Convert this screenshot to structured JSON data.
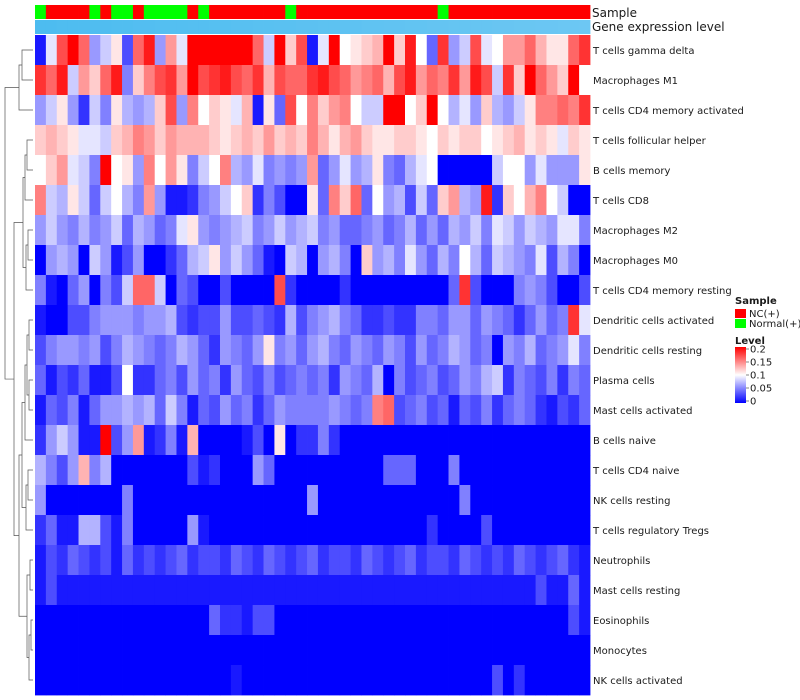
{
  "chart_data": {
    "type": "heatmap",
    "title": "",
    "annotation_labels": [
      "Sample",
      "Gene expression level"
    ],
    "rows": [
      "T cells gamma delta",
      "Macrophages M1",
      "T cells CD4 memory activated",
      "T cells follicular helper",
      "B cells memory",
      "T cells CD8",
      "Macrophages M2",
      "Macrophages M0",
      "T cells CD4 memory resting",
      "Dendritic cells activated",
      "Dendritic cells resting",
      "Plasma cells",
      "Mast cells activated",
      "B cells naive",
      "T cells CD4 naive",
      "NK cells resting",
      "T cells regulatory  Tregs",
      "Neutrophils",
      "Mast cells resting",
      "Eosinophils",
      "Monocytes",
      "NK cells activated"
    ],
    "sample_groups": [
      "Normal(+)",
      "NC(+)",
      "NC(+)",
      "NC(+)",
      "NC(+)",
      "Normal(+)",
      "NC(+)",
      "Normal(+)",
      "Normal(+)",
      "NC(+)",
      "Normal(+)",
      "Normal(+)",
      "Normal(+)",
      "Normal(+)",
      "NC(+)",
      "Normal(+)",
      "NC(+)",
      "NC(+)",
      "NC(+)",
      "NC(+)",
      "NC(+)",
      "NC(+)",
      "NC(+)",
      "Normal(+)",
      "NC(+)",
      "NC(+)",
      "NC(+)",
      "NC(+)",
      "NC(+)",
      "NC(+)",
      "NC(+)",
      "NC(+)",
      "NC(+)",
      "NC(+)",
      "NC(+)",
      "NC(+)",
      "NC(+)",
      "Normal(+)",
      "NC(+)",
      "NC(+)",
      "NC(+)",
      "NC(+)",
      "NC(+)",
      "NC(+)",
      "NC(+)",
      "NC(+)",
      "NC(+)",
      "NC(+)",
      "NC(+)",
      "NC(+)",
      "NC(+)"
    ],
    "gene_expression_level": [
      0.99,
      0.99,
      0.98,
      0.98,
      0.98,
      0.97,
      0.97,
      0.96,
      0.96,
      0.95,
      0.95,
      0.94,
      0.94,
      0.94,
      0.93,
      0.93,
      0.92,
      0.92,
      0.91,
      0.91,
      0.9,
      0.9,
      0.89,
      0.89,
      0.88,
      0.88,
      0.87,
      0.87,
      0.86,
      0.86,
      0.85,
      0.85,
      0.84,
      0.84,
      0.83,
      0.83,
      0.82,
      0.82,
      0.81,
      0.81,
      0.8,
      0.8,
      0.79,
      0.79,
      0.78,
      0.78,
      0.77,
      0.77,
      0.76,
      0.76,
      0.75
    ],
    "values": [
      [
        0.01,
        0.09,
        0.17,
        0.2,
        0.16,
        0.06,
        0.08,
        0.11,
        0.03,
        0.16,
        0.19,
        0.06,
        0.14,
        0.09,
        0.2,
        0.2,
        0.2,
        0.2,
        0.2,
        0.2,
        0.16,
        0.08,
        0.2,
        0.12,
        0.17,
        0.01,
        0.09,
        0.2,
        0.1,
        0.11,
        0.12,
        0.13,
        0.2,
        0.12,
        0.19,
        0.1,
        0.04,
        0.18,
        0.06,
        0.08,
        0.17,
        0.09,
        0.1,
        0.14,
        0.14,
        0.16,
        0.13,
        0.11,
        0.11,
        0.16,
        0.18
      ],
      [
        0.18,
        0.16,
        0.19,
        0.08,
        0.14,
        0.12,
        0.16,
        0.19,
        0.05,
        0.12,
        0.15,
        0.17,
        0.18,
        0.14,
        0.2,
        0.17,
        0.18,
        0.19,
        0.17,
        0.16,
        0.18,
        0.13,
        0.17,
        0.16,
        0.16,
        0.18,
        0.19,
        0.17,
        0.16,
        0.14,
        0.15,
        0.16,
        0.13,
        0.17,
        0.19,
        0.14,
        0.16,
        0.15,
        0.18,
        0.14,
        0.19,
        0.17,
        0.08,
        0.18,
        0.12,
        0.2,
        0.16,
        0.14,
        0.12,
        0.2,
        0.1
      ],
      [
        0.06,
        0.08,
        0.11,
        0.06,
        0.02,
        0.08,
        0.05,
        0.11,
        0.07,
        0.06,
        0.07,
        0.12,
        0.17,
        0.06,
        0.15,
        0.1,
        0.12,
        0.11,
        0.09,
        0.13,
        0.01,
        0.11,
        0.04,
        0.17,
        0.1,
        0.15,
        0.12,
        0.14,
        0.15,
        0.1,
        0.08,
        0.08,
        0.2,
        0.2,
        0.1,
        0.12,
        0.2,
        0.1,
        0.07,
        0.09,
        0.06,
        0.12,
        0.07,
        0.06,
        0.08,
        0.11,
        0.15,
        0.15,
        0.16,
        0.15,
        0.18
      ],
      [
        0.12,
        0.13,
        0.12,
        0.11,
        0.09,
        0.09,
        0.08,
        0.12,
        0.13,
        0.15,
        0.14,
        0.12,
        0.14,
        0.13,
        0.13,
        0.13,
        0.12,
        0.11,
        0.12,
        0.13,
        0.12,
        0.14,
        0.12,
        0.13,
        0.12,
        0.15,
        0.13,
        0.11,
        0.13,
        0.14,
        0.12,
        0.11,
        0.11,
        0.12,
        0.12,
        0.11,
        0.1,
        0.12,
        0.11,
        0.12,
        0.12,
        0.1,
        0.11,
        0.12,
        0.13,
        0.11,
        0.12,
        0.11,
        0.09,
        0.12,
        0.11
      ],
      [
        0.1,
        0.12,
        0.14,
        0.09,
        0.08,
        0.05,
        0.2,
        0.1,
        0.11,
        0.06,
        0.15,
        0.1,
        0.14,
        0.11,
        0.05,
        0.08,
        0.1,
        0.15,
        0.07,
        0.06,
        0.09,
        0.05,
        0.06,
        0.05,
        0.06,
        0.14,
        0.04,
        0.06,
        0.09,
        0.06,
        0.07,
        0.11,
        0.05,
        0.04,
        0.07,
        0.09,
        0.1,
        0.0,
        0.0,
        0.0,
        0.0,
        0.0,
        0.08,
        0.1,
        0.1,
        0.06,
        0.09,
        0.06,
        0.06,
        0.06,
        0.11
      ],
      [
        0.15,
        0.08,
        0.07,
        0.11,
        0.08,
        0.04,
        0.08,
        0.1,
        0.07,
        0.05,
        0.14,
        0.06,
        0.01,
        0.01,
        0.02,
        0.05,
        0.06,
        0.08,
        0.1,
        0.12,
        0.02,
        0.05,
        0.03,
        0.0,
        0.0,
        0.11,
        0.04,
        0.15,
        0.12,
        0.16,
        0.04,
        0.1,
        0.06,
        0.07,
        0.03,
        0.08,
        0.04,
        0.12,
        0.14,
        0.07,
        0.06,
        0.19,
        0.02,
        0.12,
        0.1,
        0.13,
        0.15,
        0.1,
        0.08,
        0.0,
        0.0
      ],
      [
        0.06,
        0.08,
        0.06,
        0.05,
        0.07,
        0.05,
        0.06,
        0.08,
        0.04,
        0.07,
        0.06,
        0.04,
        0.05,
        0.09,
        0.11,
        0.06,
        0.05,
        0.06,
        0.07,
        0.08,
        0.05,
        0.06,
        0.08,
        0.06,
        0.07,
        0.08,
        0.05,
        0.06,
        0.04,
        0.04,
        0.05,
        0.06,
        0.04,
        0.05,
        0.07,
        0.04,
        0.06,
        0.04,
        0.07,
        0.06,
        0.08,
        0.05,
        0.09,
        0.08,
        0.06,
        0.08,
        0.07,
        0.06,
        0.09,
        0.09,
        0.05
      ],
      [
        0.0,
        0.06,
        0.07,
        0.06,
        0.0,
        0.08,
        0.06,
        0.01,
        0.03,
        0.06,
        0.0,
        0.0,
        0.02,
        0.04,
        0.07,
        0.08,
        0.11,
        0.06,
        0.08,
        0.06,
        0.04,
        0.01,
        0.0,
        0.08,
        0.07,
        0.0,
        0.06,
        0.07,
        0.05,
        0.0,
        0.12,
        0.06,
        0.07,
        0.05,
        0.09,
        0.06,
        0.04,
        0.07,
        0.05,
        0.1,
        0.07,
        0.04,
        0.08,
        0.07,
        0.06,
        0.05,
        0.09,
        0.03,
        0.07,
        0.05,
        0.0
      ],
      [
        0.05,
        0.01,
        0.0,
        0.04,
        0.06,
        0.0,
        0.05,
        0.03,
        0.08,
        0.16,
        0.16,
        0.08,
        0.0,
        0.04,
        0.03,
        0.0,
        0.0,
        0.03,
        0.0,
        0.0,
        0.0,
        0.0,
        0.17,
        0.02,
        0.0,
        0.0,
        0.0,
        0.0,
        0.02,
        0.0,
        0.0,
        0.0,
        0.0,
        0.0,
        0.0,
        0.0,
        0.0,
        0.0,
        0.04,
        0.18,
        0.03,
        0.0,
        0.0,
        0.0,
        0.05,
        0.06,
        0.05,
        0.03,
        0.0,
        0.0,
        0.03
      ],
      [
        0.01,
        0.0,
        0.0,
        0.03,
        0.03,
        0.05,
        0.06,
        0.06,
        0.06,
        0.05,
        0.06,
        0.06,
        0.07,
        0.03,
        0.02,
        0.03,
        0.03,
        0.06,
        0.03,
        0.03,
        0.04,
        0.03,
        0.02,
        0.07,
        0.03,
        0.05,
        0.06,
        0.07,
        0.05,
        0.04,
        0.02,
        0.02,
        0.03,
        0.02,
        0.02,
        0.05,
        0.05,
        0.04,
        0.06,
        0.06,
        0.04,
        0.06,
        0.05,
        0.04,
        0.02,
        0.04,
        0.06,
        0.04,
        0.05,
        0.18,
        0.09
      ],
      [
        0.03,
        0.05,
        0.06,
        0.06,
        0.05,
        0.06,
        0.03,
        0.05,
        0.07,
        0.06,
        0.05,
        0.04,
        0.05,
        0.07,
        0.06,
        0.04,
        0.02,
        0.06,
        0.05,
        0.04,
        0.06,
        0.11,
        0.05,
        0.06,
        0.04,
        0.06,
        0.07,
        0.05,
        0.04,
        0.06,
        0.05,
        0.04,
        0.06,
        0.05,
        0.03,
        0.06,
        0.04,
        0.05,
        0.07,
        0.06,
        0.04,
        0.05,
        0.0,
        0.06,
        0.05,
        0.07,
        0.04,
        0.05,
        0.06,
        0.09,
        0.05
      ],
      [
        0.04,
        0.01,
        0.03,
        0.02,
        0.04,
        0.01,
        0.01,
        0.03,
        0.1,
        0.02,
        0.02,
        0.04,
        0.05,
        0.03,
        0.06,
        0.04,
        0.05,
        0.02,
        0.06,
        0.04,
        0.03,
        0.05,
        0.03,
        0.04,
        0.05,
        0.04,
        0.05,
        0.02,
        0.06,
        0.05,
        0.04,
        0.07,
        0.0,
        0.05,
        0.03,
        0.04,
        0.05,
        0.03,
        0.04,
        0.06,
        0.05,
        0.07,
        0.08,
        0.02,
        0.05,
        0.04,
        0.03,
        0.05,
        0.02,
        0.05,
        0.04
      ],
      [
        0.01,
        0.04,
        0.03,
        0.05,
        0.01,
        0.04,
        0.06,
        0.06,
        0.07,
        0.06,
        0.07,
        0.04,
        0.08,
        0.05,
        0.01,
        0.04,
        0.03,
        0.06,
        0.04,
        0.05,
        0.02,
        0.04,
        0.06,
        0.05,
        0.05,
        0.05,
        0.05,
        0.06,
        0.05,
        0.04,
        0.05,
        0.15,
        0.16,
        0.03,
        0.04,
        0.05,
        0.03,
        0.04,
        0.01,
        0.04,
        0.03,
        0.05,
        0.02,
        0.04,
        0.05,
        0.04,
        0.02,
        0.01,
        0.03,
        0.02,
        0.04
      ],
      [
        0.02,
        0.06,
        0.08,
        0.06,
        0.01,
        0.01,
        0.2,
        0.03,
        0.06,
        0.14,
        0.01,
        0.02,
        0.05,
        0.01,
        0.13,
        0.0,
        0.0,
        0.0,
        0.0,
        0.01,
        0.03,
        0.0,
        0.11,
        0.0,
        0.02,
        0.02,
        0.05,
        0.02,
        0.0,
        0.0,
        0.0,
        0.0,
        0.0,
        0.0,
        0.0,
        0.0,
        0.0,
        0.0,
        0.0,
        0.0,
        0.0,
        0.0,
        0.0,
        0.0,
        0.0,
        0.0,
        0.0,
        0.0,
        0.0,
        0.0,
        0.0
      ],
      [
        0.07,
        0.05,
        0.03,
        0.06,
        0.13,
        0.05,
        0.07,
        0.0,
        0.0,
        0.0,
        0.0,
        0.0,
        0.0,
        0.0,
        0.03,
        0.01,
        0.02,
        0.0,
        0.0,
        0.0,
        0.06,
        0.04,
        0.0,
        0.0,
        0.0,
        0.0,
        0.0,
        0.0,
        0.0,
        0.0,
        0.0,
        0.0,
        0.04,
        0.04,
        0.04,
        0.0,
        0.0,
        0.0,
        0.05,
        0.0,
        0.0,
        0.0,
        0.0,
        0.0,
        0.0,
        0.0,
        0.0,
        0.0,
        0.0,
        0.0,
        0.0
      ],
      [
        0.06,
        0.0,
        0.0,
        0.0,
        0.0,
        0.0,
        0.0,
        0.0,
        0.05,
        0.0,
        0.0,
        0.0,
        0.0,
        0.0,
        0.0,
        0.0,
        0.0,
        0.0,
        0.0,
        0.0,
        0.0,
        0.0,
        0.0,
        0.0,
        0.0,
        0.06,
        0.0,
        0.0,
        0.0,
        0.0,
        0.0,
        0.0,
        0.0,
        0.0,
        0.0,
        0.0,
        0.0,
        0.0,
        0.0,
        0.05,
        0.0,
        0.0,
        0.0,
        0.0,
        0.0,
        0.0,
        0.0,
        0.0,
        0.0,
        0.0,
        0.0
      ],
      [
        0.02,
        0.04,
        0.01,
        0.01,
        0.07,
        0.07,
        0.03,
        0.01,
        0.05,
        0.0,
        0.0,
        0.0,
        0.0,
        0.0,
        0.06,
        0.01,
        0.0,
        0.0,
        0.0,
        0.0,
        0.0,
        0.0,
        0.0,
        0.0,
        0.0,
        0.0,
        0.0,
        0.0,
        0.0,
        0.0,
        0.0,
        0.0,
        0.0,
        0.0,
        0.0,
        0.0,
        0.02,
        0.0,
        0.0,
        0.0,
        0.0,
        0.03,
        0.0,
        0.0,
        0.0,
        0.0,
        0.0,
        0.0,
        0.0,
        0.0,
        0.0
      ],
      [
        0.01,
        0.03,
        0.02,
        0.04,
        0.03,
        0.02,
        0.03,
        0.01,
        0.04,
        0.02,
        0.03,
        0.02,
        0.03,
        0.04,
        0.02,
        0.03,
        0.03,
        0.02,
        0.04,
        0.03,
        0.02,
        0.04,
        0.03,
        0.02,
        0.03,
        0.04,
        0.02,
        0.03,
        0.03,
        0.02,
        0.04,
        0.03,
        0.02,
        0.03,
        0.04,
        0.02,
        0.03,
        0.03,
        0.02,
        0.04,
        0.03,
        0.02,
        0.03,
        0.02,
        0.04,
        0.03,
        0.02,
        0.03,
        0.04,
        0.02,
        0.01
      ],
      [
        0.01,
        0.03,
        0.01,
        0.01,
        0.01,
        0.01,
        0.01,
        0.01,
        0.01,
        0.01,
        0.01,
        0.01,
        0.01,
        0.01,
        0.01,
        0.01,
        0.01,
        0.01,
        0.01,
        0.01,
        0.01,
        0.01,
        0.01,
        0.01,
        0.01,
        0.01,
        0.01,
        0.01,
        0.01,
        0.01,
        0.01,
        0.01,
        0.01,
        0.01,
        0.01,
        0.01,
        0.01,
        0.01,
        0.01,
        0.01,
        0.01,
        0.01,
        0.01,
        0.01,
        0.01,
        0.01,
        0.03,
        0.01,
        0.01,
        0.04,
        0.01
      ],
      [
        0.0,
        0.0,
        0.0,
        0.0,
        0.0,
        0.0,
        0.0,
        0.0,
        0.0,
        0.0,
        0.0,
        0.0,
        0.0,
        0.0,
        0.0,
        0.0,
        0.04,
        0.02,
        0.02,
        0.01,
        0.03,
        0.03,
        0.0,
        0.0,
        0.0,
        0.0,
        0.0,
        0.0,
        0.0,
        0.0,
        0.0,
        0.0,
        0.0,
        0.0,
        0.0,
        0.0,
        0.0,
        0.0,
        0.0,
        0.0,
        0.0,
        0.0,
        0.0,
        0.0,
        0.0,
        0.0,
        0.0,
        0.0,
        0.0,
        0.03,
        0.01
      ],
      [
        0.0,
        0.0,
        0.0,
        0.0,
        0.0,
        0.0,
        0.0,
        0.0,
        0.0,
        0.0,
        0.0,
        0.0,
        0.0,
        0.0,
        0.0,
        0.0,
        0.0,
        0.0,
        0.0,
        0.0,
        0.0,
        0.0,
        0.0,
        0.0,
        0.0,
        0.0,
        0.0,
        0.0,
        0.0,
        0.0,
        0.0,
        0.0,
        0.0,
        0.0,
        0.0,
        0.0,
        0.0,
        0.0,
        0.0,
        0.0,
        0.0,
        0.0,
        0.0,
        0.0,
        0.0,
        0.0,
        0.0,
        0.0,
        0.0,
        0.0,
        0.0
      ],
      [
        0.0,
        0.0,
        0.0,
        0.0,
        0.0,
        0.0,
        0.0,
        0.0,
        0.0,
        0.0,
        0.0,
        0.0,
        0.0,
        0.0,
        0.0,
        0.0,
        0.0,
        0.0,
        0.01,
        0.0,
        0.0,
        0.0,
        0.0,
        0.0,
        0.0,
        0.0,
        0.0,
        0.0,
        0.0,
        0.0,
        0.0,
        0.0,
        0.0,
        0.0,
        0.0,
        0.0,
        0.0,
        0.0,
        0.0,
        0.0,
        0.0,
        0.0,
        0.03,
        0.0,
        0.02,
        0.0,
        0.0,
        0.0,
        0.0,
        0.0,
        0.0
      ]
    ],
    "legend": {
      "sample_title": "Sample",
      "sample_entries": [
        {
          "label": "NC(+)",
          "color": "#ff0000"
        },
        {
          "label": "Normal(+)",
          "color": "#00ff00"
        }
      ],
      "level_title": "Level",
      "level_ticks": [
        "0.2",
        "0.15",
        "0.1",
        "0.05",
        "0"
      ],
      "level_tick_values": [
        0.2,
        0.15,
        0.1,
        0.05,
        0
      ],
      "range": [
        0,
        0.2
      ],
      "colors": {
        "low": "#0000ff",
        "mid": "#ffffff",
        "high": "#ff0000"
      },
      "position": "right"
    },
    "annotation_colors": {
      "expression_low": "#cfe9fb",
      "expression_high": "#4cbcf0"
    }
  }
}
